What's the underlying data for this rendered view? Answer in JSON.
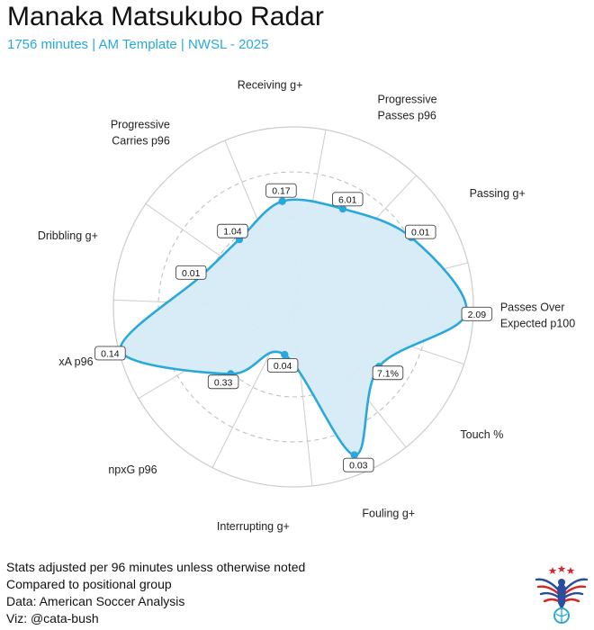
{
  "header": {
    "title": "Manaka Matsukubo Radar",
    "subtitle": "1756 minutes | AM Template | NWSL - 2025"
  },
  "footer": {
    "lines": [
      "Stats adjusted per 96 minutes unless otherwise noted",
      "Compared to positional group",
      "Data: American Soccer Analysis",
      "Viz: @cata-bush"
    ]
  },
  "colors": {
    "accent": "#29a8dc",
    "fill": "#d6ebf7",
    "grid": "#cccccc",
    "logo_red": "#d8232a",
    "logo_blue": "#2a4e9b"
  },
  "chart_data": {
    "type": "radar",
    "title": "Manaka Matsukubo Radar",
    "rlim": [
      0,
      100
    ],
    "grid": true,
    "axes": [
      {
        "label": [
          "Receiving g+"
        ],
        "value_label": "0.17",
        "percentile": 59
      },
      {
        "label": [
          "Progressive",
          "Passes p96"
        ],
        "value_label": "6.01",
        "percentile": 61
      },
      {
        "label": [
          "Passing g+"
        ],
        "value_label": "0.01",
        "percentile": 76
      },
      {
        "label": [
          "Passes Over",
          "Expected p100"
        ],
        "value_label": "2.09",
        "percentile": 96
      },
      {
        "label": [
          "Touch %"
        ],
        "value_label": "7.1%",
        "percentile": 58
      },
      {
        "label": [
          "Fouling g+"
        ],
        "value_label": "0.03",
        "percentile": 89
      },
      {
        "label": [
          "Interrupting g+"
        ],
        "value_label": "0.04",
        "percentile": 27
      },
      {
        "label": [
          "npxG p96"
        ],
        "value_label": "0.33",
        "percentile": 51
      },
      {
        "label": [
          "xA p96"
        ],
        "value_label": "0.14",
        "percentile": 99
      },
      {
        "label": [
          "Dribbling g+"
        ],
        "value_label": "0.01",
        "percentile": 54
      },
      {
        "label": [
          "Progressive",
          "Carries p96"
        ],
        "value_label": "1.04",
        "percentile": 48
      }
    ]
  }
}
